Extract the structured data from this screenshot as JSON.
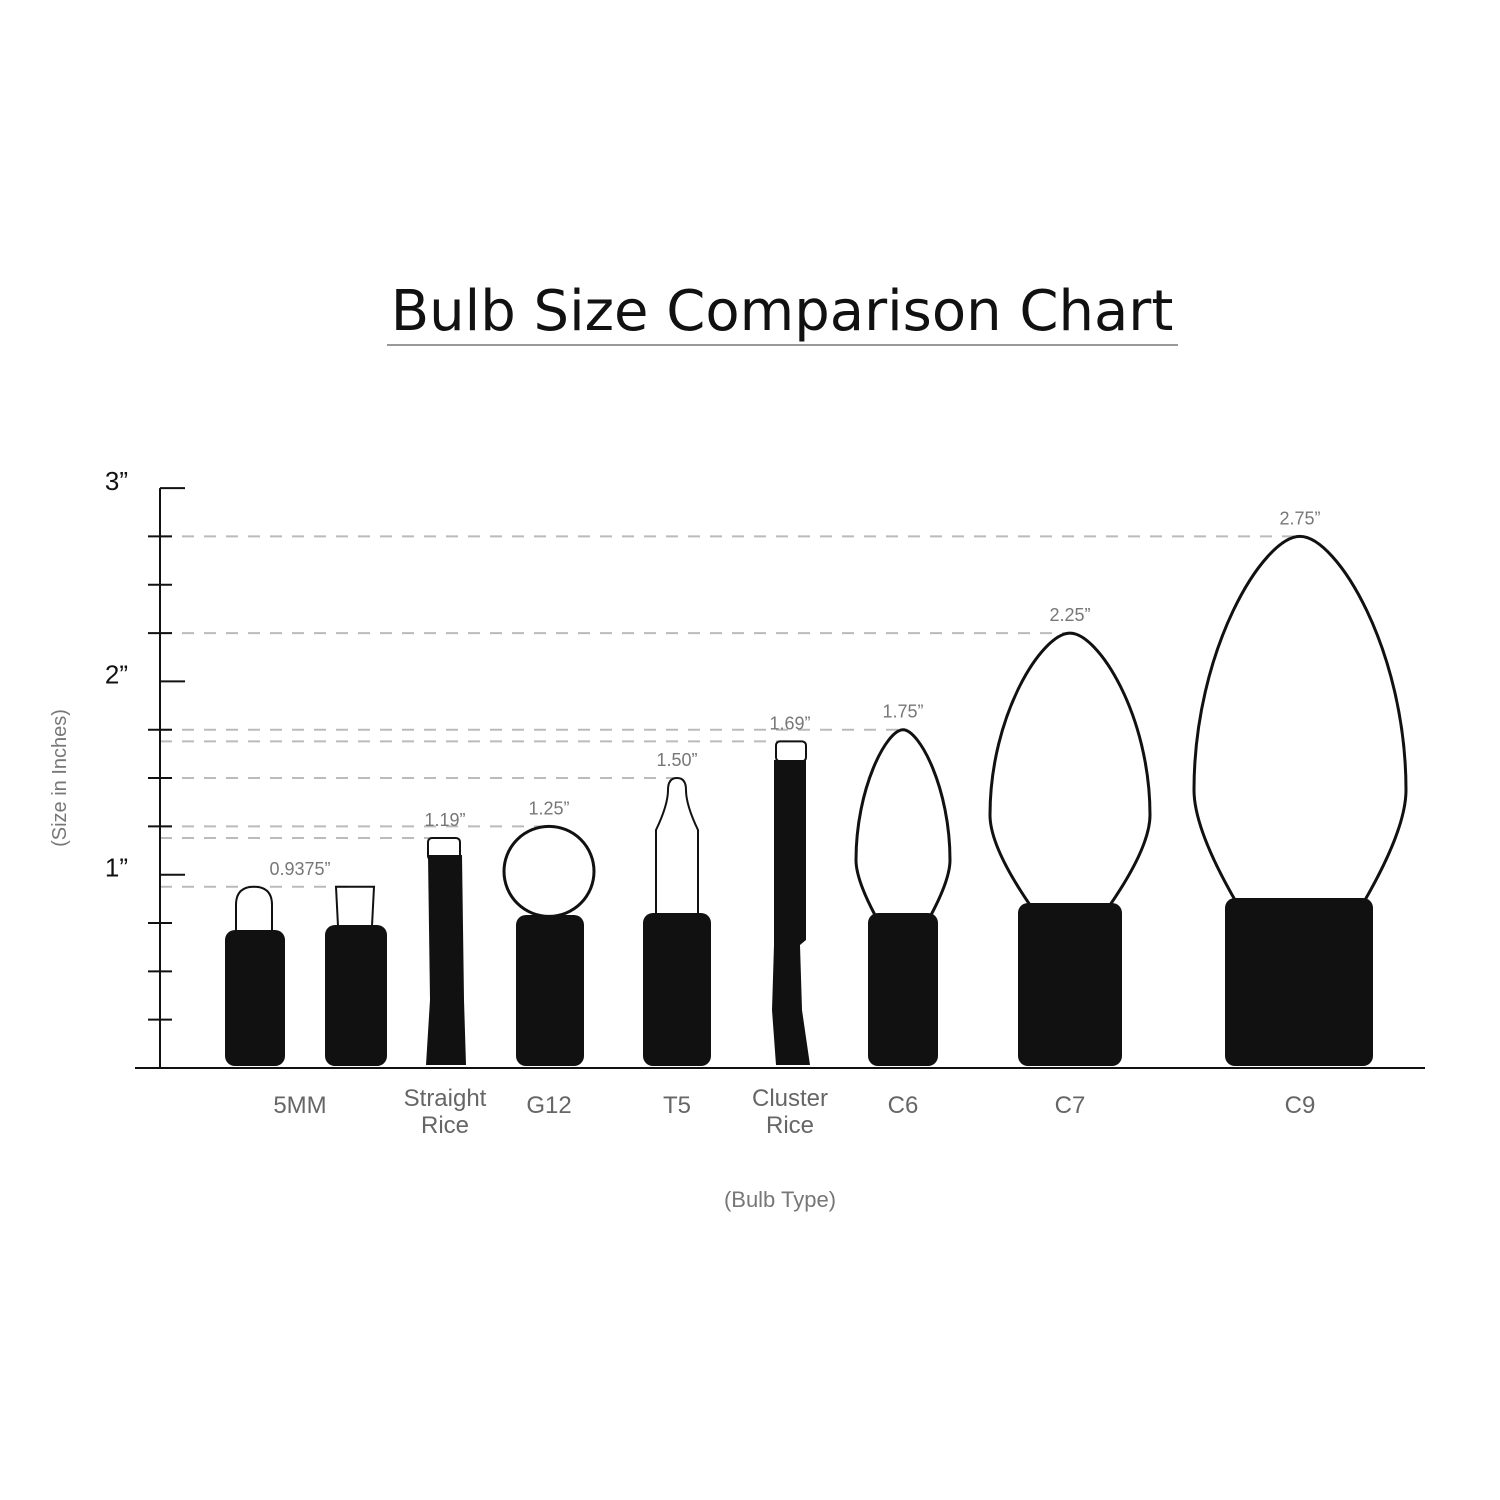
{
  "chart_data": {
    "type": "bar",
    "title": "Bulb Size Comparison Chart",
    "xlabel": "(Bulb Type)",
    "ylabel": "(Size in Inches)",
    "ylim": [
      0,
      3
    ],
    "yticks": [
      "1”",
      "2”",
      "3”"
    ],
    "categories": [
      "5MM",
      "Straight Rice",
      "G12",
      "T5",
      "Cluster Rice",
      "C6",
      "C7",
      "C9"
    ],
    "category_lines": [
      [
        "5MM"
      ],
      [
        "Straight",
        "Rice"
      ],
      [
        "G12"
      ],
      [
        "T5"
      ],
      [
        "Cluster",
        "Rice"
      ],
      [
        "C6"
      ],
      [
        "C7"
      ],
      [
        "C9"
      ]
    ],
    "values": [
      0.9375,
      1.19,
      1.25,
      1.5,
      1.69,
      1.75,
      2.25,
      2.75
    ],
    "value_labels": [
      "0.9375”",
      "1.19”",
      "1.25”",
      "1.50”",
      "1.69”",
      "1.75”",
      "2.25”",
      "2.75”"
    ],
    "grid": "dashed reference lines at each bulb height",
    "colors": {
      "bulb_base": "#111111",
      "outline": "#111111",
      "dash": "#bbbbbb",
      "label": "#777777"
    }
  }
}
